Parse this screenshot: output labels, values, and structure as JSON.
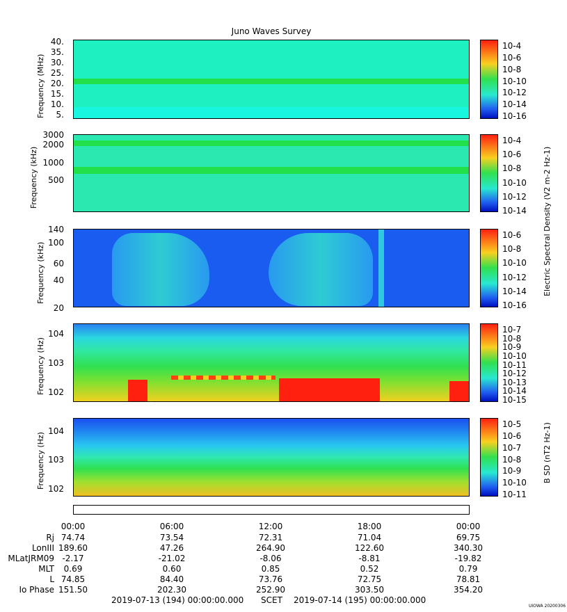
{
  "title": "Juno Waves Survey",
  "panels": [
    {
      "ylabel": "Frequency (MHz)",
      "ticks": [
        "40.",
        "35.",
        "30.",
        "25.",
        "20.",
        "15.",
        "10.",
        "5."
      ],
      "cbar_ticks": [
        "10-4",
        "10-6",
        "10-8",
        "10-10",
        "10-12",
        "10-14",
        "10-16"
      ]
    },
    {
      "ylabel": "Frequency (kHz)",
      "ticks": [
        "3000",
        "2000",
        "1000",
        "500"
      ],
      "cbar_ticks": [
        "10-4",
        "10-6",
        "10-8",
        "10-10",
        "10-12",
        "10-14"
      ]
    },
    {
      "ylabel": "Frequency (kHz)",
      "ticks": [
        "140",
        "100",
        "60",
        "40",
        "20"
      ],
      "cbar_ticks": [
        "10-6",
        "10-8",
        "10-10",
        "10-12",
        "10-14",
        "10-16"
      ]
    },
    {
      "ylabel": "Frequency (Hz)",
      "ticks": [
        "104",
        "103",
        "102"
      ],
      "cbar_ticks": [
        "10-7",
        "10-8",
        "10-9",
        "10-10",
        "10-11",
        "10-12",
        "10-13",
        "10-14",
        "10-15"
      ]
    },
    {
      "ylabel": "Frequency (Hz)",
      "ticks": [
        "104",
        "103",
        "102"
      ],
      "cbar_ticks": [
        "10-5",
        "10-6",
        "10-7",
        "10-8",
        "10-9",
        "10-10",
        "10-11"
      ]
    }
  ],
  "cbar_label_e": "Electric Spectral Density (V2 m-2 Hz-1)",
  "cbar_label_b": "B SD (nT2 Hz-1)",
  "time_ticks": [
    "00:00",
    "06:00",
    "12:00",
    "18:00",
    "00:00"
  ],
  "ephemeris": [
    {
      "label": "Rj",
      "values": [
        "74.74",
        "73.54",
        "72.31",
        "71.04",
        "69.75"
      ]
    },
    {
      "label": "LonIII",
      "values": [
        "189.60",
        "47.26",
        "264.90",
        "122.60",
        "340.30"
      ]
    },
    {
      "label": "MLatJRM09",
      "values": [
        "-2.17",
        "-21.02",
        "-8.06",
        "-8.81",
        "-19.82"
      ]
    },
    {
      "label": "MLT",
      "values": [
        "0.69",
        "0.60",
        "0.85",
        "0.52",
        "0.79"
      ]
    },
    {
      "label": "L",
      "values": [
        "74.85",
        "84.40",
        "73.76",
        "72.75",
        "78.81"
      ]
    },
    {
      "label": "Io Phase",
      "values": [
        "151.50",
        "202.30",
        "252.90",
        "303.50",
        "354.20"
      ]
    }
  ],
  "footer": {
    "start": "2019-07-13 (194) 00:00:00.000",
    "scet": "SCET",
    "end": "2019-07-14 (195) 00:00:00.000"
  },
  "stamp": "UIOWA 20200306",
  "colors": {
    "bg_cyan": "#19f0c8",
    "bg_blue": "#1a5cf0",
    "green": "#22e04a",
    "red": "#ff2010",
    "yellow": "#f8d020"
  }
}
